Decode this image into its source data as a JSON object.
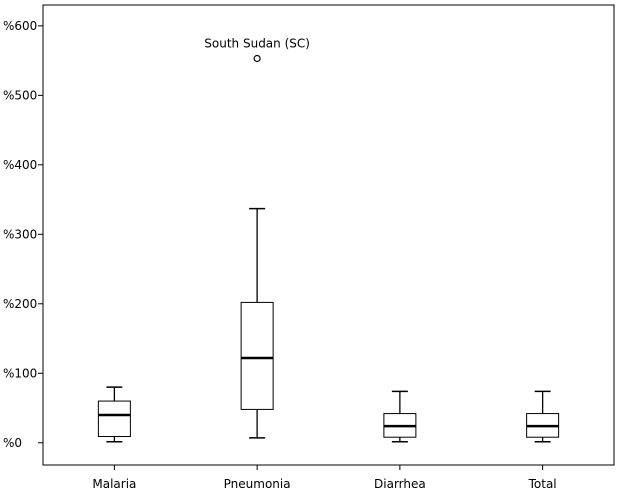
{
  "chart_data": {
    "type": "box",
    "categories": [
      "Malaria",
      "Pneumonia",
      "Diarrhea",
      "Total"
    ],
    "boxes": [
      {
        "category": "Malaria",
        "min": 1.5,
        "q1": 9,
        "median": 40,
        "q3": 60,
        "max": 80
      },
      {
        "category": "Pneumonia",
        "min": 7,
        "q1": 48,
        "median": 122,
        "q3": 202,
        "max": 337
      },
      {
        "category": "Diarrhea",
        "min": 1.5,
        "q1": 8,
        "median": 24,
        "q3": 42,
        "max": 74
      },
      {
        "category": "Total",
        "min": 1.5,
        "q1": 8,
        "median": 24,
        "q3": 42,
        "max": 74
      }
    ],
    "outliers": [
      {
        "category": "Pneumonia",
        "value": 553,
        "label": "South Sudan (SC)"
      }
    ],
    "yticks": [
      0,
      100,
      200,
      300,
      400,
      500,
      600
    ],
    "ytick_labels": [
      "%0",
      "%100",
      "%200",
      "%300",
      "%400",
      "%500",
      "%600"
    ],
    "ylim": [
      -32,
      630
    ],
    "grid": false,
    "legend": "none"
  }
}
